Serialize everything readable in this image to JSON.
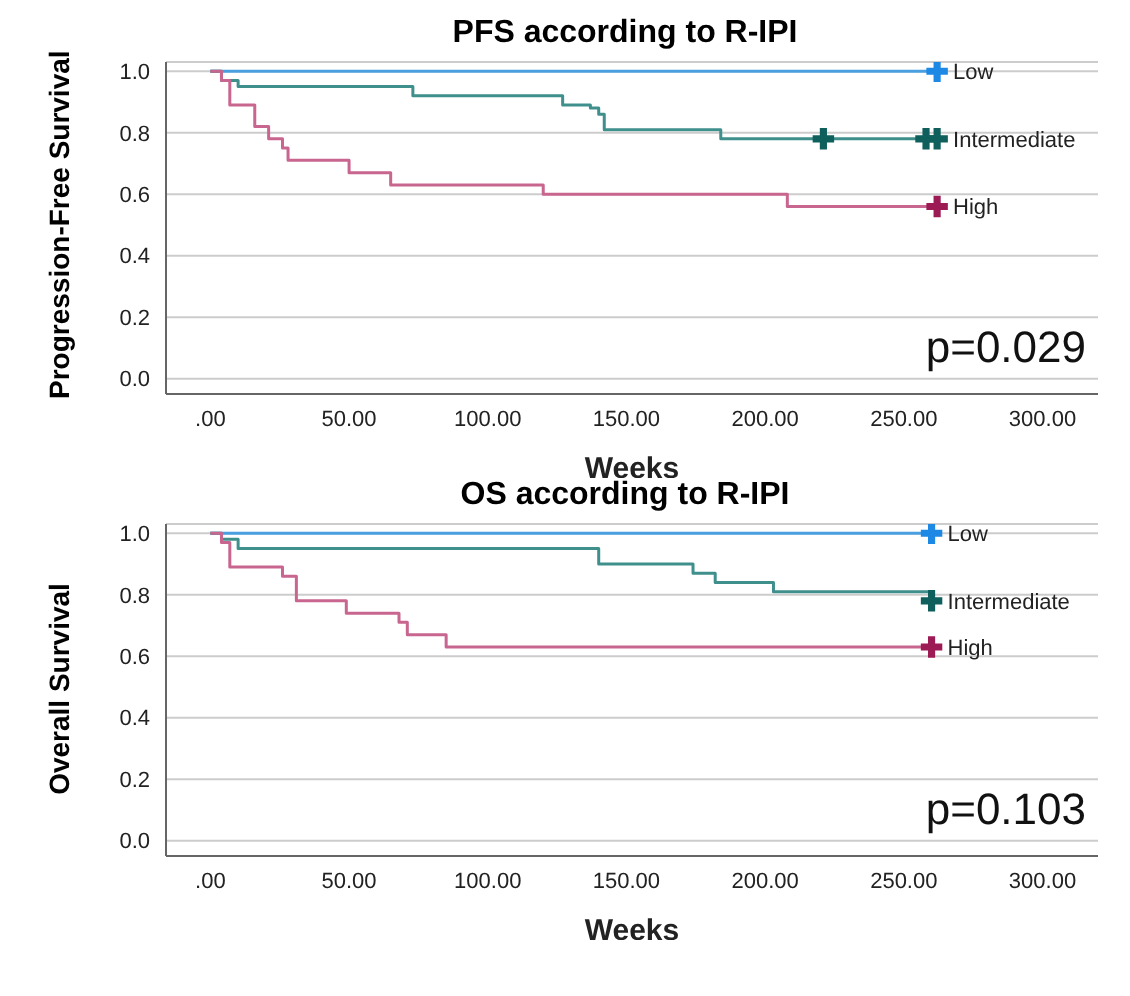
{
  "chart_data": [
    {
      "type": "step",
      "title": "PFS according to R-IPI",
      "xlabel": "Weeks",
      "ylabel": "Progression-Free Survival",
      "grid": "y",
      "legend": false,
      "xlim": [
        -16,
        320
      ],
      "ylim": [
        -0.05,
        1.03
      ],
      "xticks": [
        {
          "value": 0,
          "label": ".00"
        },
        {
          "value": 50,
          "label": "50.00"
        },
        {
          "value": 100,
          "label": "100.00"
        },
        {
          "value": 150,
          "label": "150.00"
        },
        {
          "value": 200,
          "label": "200.00"
        },
        {
          "value": 250,
          "label": "250.00"
        },
        {
          "value": 300,
          "label": "300.00"
        }
      ],
      "yticks": [
        {
          "value": 0,
          "label": "0.0"
        },
        {
          "value": 0.2,
          "label": "0.2"
        },
        {
          "value": 0.4,
          "label": "0.4"
        },
        {
          "value": 0.6,
          "label": "0.6"
        },
        {
          "value": 0.8,
          "label": "0.8"
        },
        {
          "value": 1,
          "label": "1.0"
        }
      ],
      "annotations": [
        "p=0.029"
      ],
      "series": [
        {
          "name": "Low",
          "color": "#4a9fe0",
          "x": [
            0,
            262
          ],
          "values": [
            1,
            1
          ]
        },
        {
          "name": "Intermediate",
          "color": "#3f8f8c",
          "x": [
            0,
            4,
            10,
            73,
            127,
            137,
            140,
            142,
            184,
            262
          ],
          "values": [
            1,
            0.97,
            0.95,
            0.92,
            0.89,
            0.88,
            0.86,
            0.81,
            0.78,
            0.78
          ]
        },
        {
          "name": "High",
          "color": "#c9668f",
          "x": [
            0,
            4,
            7,
            16,
            21,
            26,
            28,
            50,
            65,
            120,
            208,
            262
          ],
          "values": [
            1,
            0.97,
            0.89,
            0.82,
            0.78,
            0.75,
            0.71,
            0.67,
            0.63,
            0.6,
            0.56,
            0.56
          ]
        },
        {
          "type": "scatter",
          "marker": "cross",
          "color": "#1e88e5",
          "x": [
            262
          ],
          "values": [
            1
          ]
        },
        {
          "type": "scatter",
          "marker": "cross",
          "color": "#0f5f5c",
          "x": [
            221,
            258,
            262
          ],
          "values": [
            0.78,
            0.78,
            0.78
          ]
        },
        {
          "type": "scatter",
          "marker": "cross",
          "color": "#9c1b55",
          "x": [
            262
          ],
          "values": [
            0.56
          ]
        }
      ]
    },
    {
      "type": "step",
      "title": "OS according to R-IPI",
      "xlabel": "Weeks",
      "ylabel": "Overall Survival",
      "grid": "y",
      "legend": false,
      "xlim": [
        -16,
        320
      ],
      "ylim": [
        -0.05,
        1.03
      ],
      "xticks": [
        {
          "value": 0,
          "label": ".00"
        },
        {
          "value": 50,
          "label": "50.00"
        },
        {
          "value": 100,
          "label": "100.00"
        },
        {
          "value": 150,
          "label": "150.00"
        },
        {
          "value": 200,
          "label": "200.00"
        },
        {
          "value": 250,
          "label": "250.00"
        },
        {
          "value": 300,
          "label": "300.00"
        }
      ],
      "yticks": [
        {
          "value": 0,
          "label": "0.0"
        },
        {
          "value": 0.2,
          "label": "0.2"
        },
        {
          "value": 0.4,
          "label": "0.4"
        },
        {
          "value": 0.6,
          "label": "0.6"
        },
        {
          "value": 0.8,
          "label": "0.8"
        },
        {
          "value": 1,
          "label": "1.0"
        }
      ],
      "annotations": [
        "p=0.103"
      ],
      "series": [
        {
          "name": "Low",
          "color": "#4a9fe0",
          "x": [
            0,
            260
          ],
          "values": [
            1,
            1
          ]
        },
        {
          "name": "Intermediate",
          "color": "#3f8f8c",
          "x": [
            0,
            4,
            10,
            140,
            174,
            182,
            203,
            260
          ],
          "values": [
            1,
            0.98,
            0.95,
            0.9,
            0.87,
            0.84,
            0.81,
            0.78
          ]
        },
        {
          "name": "High",
          "color": "#c9668f",
          "x": [
            0,
            4,
            7,
            26,
            31,
            49,
            68,
            71,
            85,
            260
          ],
          "values": [
            1,
            0.97,
            0.89,
            0.86,
            0.78,
            0.74,
            0.71,
            0.67,
            0.63,
            0.63
          ]
        },
        {
          "type": "scatter",
          "marker": "cross",
          "color": "#1e88e5",
          "x": [
            260
          ],
          "values": [
            1
          ]
        },
        {
          "type": "scatter",
          "marker": "cross",
          "color": "#0f5f5c",
          "x": [
            260
          ],
          "values": [
            0.78
          ]
        },
        {
          "type": "scatter",
          "marker": "cross",
          "color": "#9c1b55",
          "x": [
            260
          ],
          "values": [
            0.63
          ]
        }
      ]
    }
  ]
}
